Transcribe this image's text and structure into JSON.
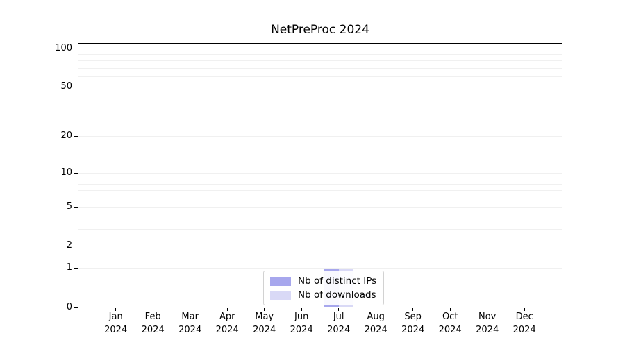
{
  "chart_data": {
    "type": "bar",
    "title": "NetPreProc 2024",
    "categories": [
      "Jan",
      "Feb",
      "Mar",
      "Apr",
      "May",
      "Jun",
      "Jul",
      "Aug",
      "Sep",
      "Oct",
      "Nov",
      "Dec"
    ],
    "category_sublabel": "2024",
    "series": [
      {
        "name": "Nb of distinct IPs",
        "color": "#a7a7ed",
        "values": [
          0,
          0,
          0,
          0,
          0,
          0,
          1,
          0,
          0,
          0,
          0,
          0
        ]
      },
      {
        "name": "Nb of downloads",
        "color": "#d9d9f6",
        "values": [
          0,
          0,
          0,
          0,
          0,
          0,
          1,
          0,
          0,
          0,
          0,
          0
        ]
      }
    ],
    "y_ticks": [
      0,
      1,
      2,
      5,
      10,
      20,
      50,
      100
    ],
    "gridline_values": [
      1,
      2,
      3,
      4,
      5,
      6,
      7,
      8,
      9,
      10,
      20,
      30,
      40,
      50,
      60,
      70,
      80,
      90,
      100
    ],
    "scale": "log1p",
    "ylim": [
      0,
      110
    ],
    "xlabel": "",
    "ylabel": "",
    "legend_position": "lower center",
    "grid": true,
    "colors": {
      "grid": "#f0f0f0",
      "grid_emphasis": "#c9c9c9",
      "grid_emphasis_value": 100,
      "axis": "#000000",
      "background": "#ffffff"
    }
  }
}
